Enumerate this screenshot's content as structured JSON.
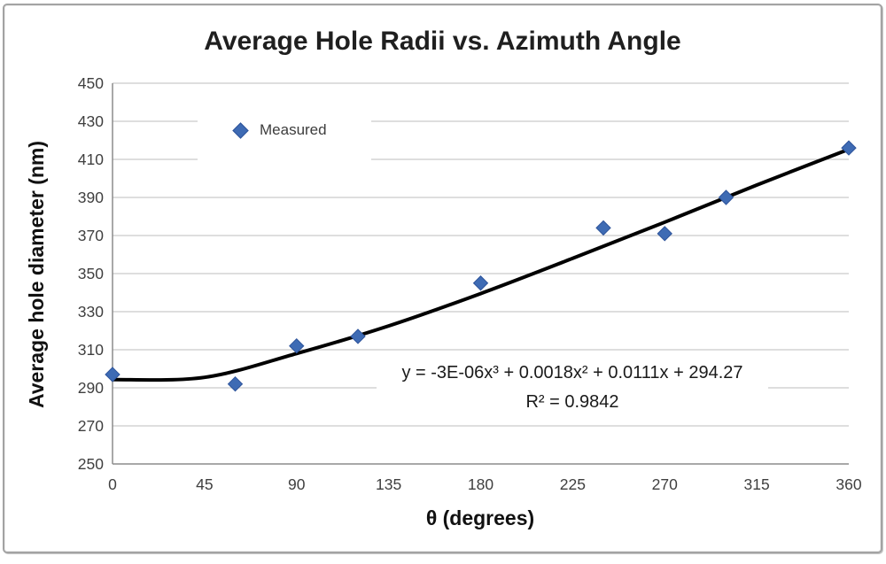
{
  "frame": {
    "background": "#ffffff",
    "border_color": "#a3a3a3"
  },
  "colors": {
    "marker_fill": "#3e6bb4",
    "marker_edge": "#2e549b",
    "trendline": "#000000",
    "gridline": "#c9c9c9",
    "axis_line": "#8c8c8c",
    "tick_text": "#3f3f3f"
  },
  "chart_data": {
    "type": "scatter",
    "title": "Average Hole Radii vs. Azimuth Angle",
    "xlabel": "θ (degrees)",
    "ylabel": "Average hole diameter (nm)",
    "xlim": [
      0,
      360
    ],
    "ylim": [
      250,
      450
    ],
    "xticks": [
      0,
      45,
      90,
      135,
      180,
      225,
      270,
      315,
      360
    ],
    "yticks": [
      250,
      270,
      290,
      310,
      330,
      350,
      370,
      390,
      410,
      430,
      450
    ],
    "grid": "horizontal-only",
    "legend": {
      "position": "inside-top-left",
      "entries": [
        {
          "label": "Measured",
          "marker": "diamond",
          "color": "#3e6bb4"
        }
      ]
    },
    "series": [
      {
        "name": "Measured",
        "marker": "diamond",
        "color": "#3e6bb4",
        "points": [
          [
            0,
            297
          ],
          [
            60,
            292
          ],
          [
            90,
            312
          ],
          [
            120,
            317
          ],
          [
            180,
            345
          ],
          [
            240,
            374
          ],
          [
            270,
            371
          ],
          [
            300,
            390
          ],
          [
            360,
            416
          ]
        ]
      }
    ],
    "trendline": {
      "type": "polynomial-order-3",
      "color": "#000000",
      "width": 4,
      "equation": "y = -3E-06x³ + 0.0018x² + 0.0111x + 294.27",
      "r_squared": "R² = 0.9842",
      "curve_points": [
        [
          0,
          294.3
        ],
        [
          45,
          295.5
        ],
        [
          90,
          308
        ],
        [
          135,
          322.5
        ],
        [
          180,
          339.5
        ],
        [
          225,
          358
        ],
        [
          270,
          377
        ],
        [
          315,
          396.5
        ],
        [
          360,
          415.3
        ]
      ]
    }
  }
}
